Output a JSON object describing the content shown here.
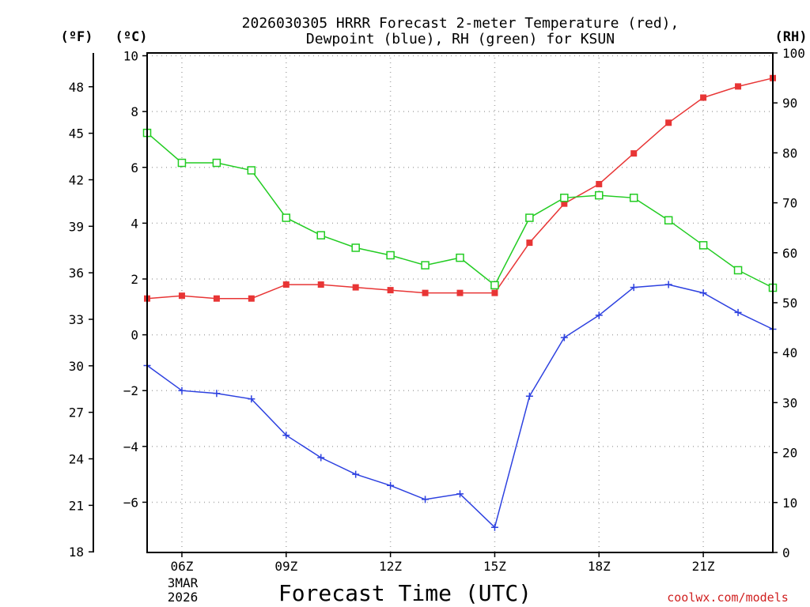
{
  "chart_data": {
    "type": "line",
    "title_line1": "2026030305 HRRR Forecast 2-meter Temperature (red),",
    "title_line2": "Dewpoint (blue), RH (green) for KSUN",
    "unit_f": "(ºF)",
    "unit_c": "(ºC)",
    "unit_rh": "(RH)",
    "xlabel": "Forecast Time (UTC)",
    "date_day": "3MAR",
    "date_year": "2026",
    "watermark": "coolwx.com/models",
    "x_hours": [
      5,
      6,
      7,
      8,
      9,
      10,
      11,
      12,
      13,
      14,
      15,
      16,
      17,
      18,
      19,
      20,
      21,
      22,
      23
    ],
    "x_ticks": [
      {
        "hour": 6,
        "label": "06Z"
      },
      {
        "hour": 9,
        "label": "09Z"
      },
      {
        "hour": 12,
        "label": "12Z"
      },
      {
        "hour": 15,
        "label": "15Z"
      },
      {
        "hour": 18,
        "label": "18Z"
      },
      {
        "hour": 21,
        "label": "21Z"
      }
    ],
    "xlim": [
      5,
      23
    ],
    "ylim_c": [
      -7.8,
      10.1
    ],
    "yticks_c": [
      10,
      8,
      6,
      4,
      2,
      0,
      -2,
      -4,
      -6
    ],
    "yticks_c_labels": [
      "10",
      "8",
      "6",
      "4",
      "2",
      "0",
      "−2",
      "−4",
      "−6"
    ],
    "yticks_f": [
      48,
      45,
      42,
      39,
      36,
      33,
      30,
      27,
      24,
      21,
      18
    ],
    "ylim_rh": [
      0,
      100
    ],
    "yticks_rh": [
      100,
      90,
      80,
      70,
      60,
      50,
      40,
      30,
      20,
      10,
      0
    ],
    "series": [
      {
        "name": "Temperature",
        "unit": "C",
        "color": "#e83535",
        "marker": "filled-square",
        "values": [
          1.3,
          1.4,
          1.3,
          1.3,
          1.8,
          1.8,
          1.7,
          1.6,
          1.5,
          1.5,
          1.5,
          3.3,
          4.7,
          5.4,
          6.5,
          7.6,
          8.5,
          8.9,
          9.2
        ]
      },
      {
        "name": "Dewpoint",
        "unit": "C",
        "color": "#2d41e0",
        "marker": "plus",
        "values": [
          -1.1,
          -2.0,
          -2.1,
          -2.3,
          -3.6,
          -4.4,
          -5.0,
          -5.4,
          -5.9,
          -5.7,
          -6.9,
          -2.2,
          -0.1,
          0.7,
          1.7,
          1.8,
          1.5,
          0.8,
          0.2
        ]
      },
      {
        "name": "RH",
        "unit": "%",
        "color": "#22cc22",
        "marker": "open-square",
        "values": [
          84,
          78,
          78,
          76.5,
          67,
          63.5,
          61,
          59.5,
          57.5,
          59,
          53.5,
          67,
          71,
          71.5,
          71,
          66.5,
          61.5,
          56.5,
          53
        ]
      }
    ]
  }
}
